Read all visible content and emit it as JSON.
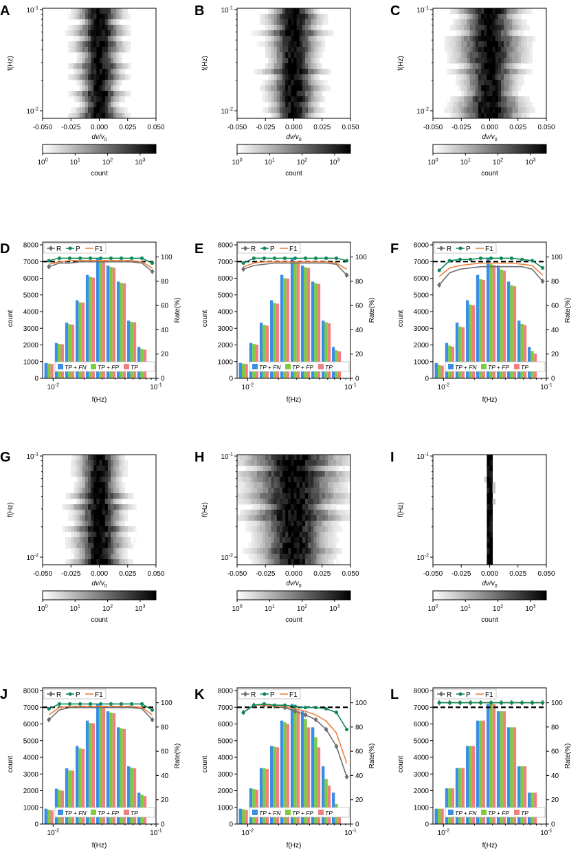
{
  "figure": {
    "heatmap_xlabel": "dv/v",
    "heatmap_xlabel_sub": "0",
    "heatmap_ylabel": "f(Hz)",
    "colorbar_label": "count",
    "hist_xlabel": "f(Hz)",
    "hist_ylabel_left": "count",
    "hist_ylabel_right": "Rate(%)",
    "legend_top": [
      "R",
      "P",
      "F1"
    ],
    "legend_bottom": [
      "TP + FN",
      "TP + FP",
      "TP"
    ],
    "colors": {
      "R": "#6e6e6e",
      "P": "#10885a",
      "F1": "#f0803c",
      "TP_FN": "#3a8ee6",
      "TP_FP": "#7ccc3c",
      "TP": "#f08080",
      "dashed": "#000000"
    }
  },
  "chart_data": [
    {
      "panel": "A",
      "type": "heatmap",
      "spread": 0.01,
      "density": "normal",
      "x_ticks": [
        "-0.050",
        "-0.025",
        "0.000",
        "0.025",
        "0.050"
      ],
      "xlim": [
        -0.05,
        0.05
      ],
      "y_ticks": [
        "10^-1",
        "10^-2"
      ],
      "ylim": [
        0.008,
        0.1
      ],
      "colorbar_ticks": [
        "10^0",
        "10^1",
        "10^2",
        "10^3"
      ]
    },
    {
      "panel": "B",
      "type": "heatmap",
      "spread": 0.012,
      "density": "normal",
      "x_ticks": [
        "-0.050",
        "-0.025",
        "0.000",
        "0.025",
        "0.050"
      ],
      "xlim": [
        -0.05,
        0.05
      ],
      "y_ticks": [
        "10^-1",
        "10^-2"
      ],
      "ylim": [
        0.008,
        0.1
      ],
      "colorbar_ticks": [
        "10^0",
        "10^1",
        "10^2",
        "10^3"
      ]
    },
    {
      "panel": "C",
      "type": "heatmap",
      "spread": 0.014,
      "density": "normal",
      "x_ticks": [
        "-0.050",
        "-0.025",
        "0.000",
        "0.025",
        "0.050"
      ],
      "xlim": [
        -0.05,
        0.05
      ],
      "y_ticks": [
        "10^-1",
        "10^-2"
      ],
      "ylim": [
        0.008,
        0.1
      ],
      "colorbar_ticks": [
        "10^0",
        "10^1",
        "10^2",
        "10^3"
      ]
    },
    {
      "panel": "D",
      "type": "bar",
      "x": [
        0.0091,
        0.0115,
        0.0145,
        0.0183,
        0.023,
        0.029,
        0.0365,
        0.046,
        0.058,
        0.073,
        0.092
      ],
      "series": [
        {
          "name": "TP + FN",
          "values": [
            920,
            2120,
            3340,
            4680,
            6200,
            7200,
            6760,
            5800,
            3460,
            1880,
            0
          ]
        },
        {
          "name": "TP + FP",
          "values": [
            880,
            2060,
            3240,
            4560,
            6080,
            7060,
            6680,
            5720,
            3380,
            1760,
            0
          ]
        },
        {
          "name": "TP",
          "values": [
            860,
            2040,
            3220,
            4540,
            6040,
            7020,
            6640,
            5700,
            3360,
            1720,
            0
          ]
        }
      ],
      "rates": {
        "x": [
          0.0091,
          0.0115,
          0.0145,
          0.0183,
          0.023,
          0.029,
          0.0365,
          0.046,
          0.058,
          0.073,
          0.092
        ],
        "R": [
          92,
          95,
          95,
          96,
          96,
          96,
          96,
          96,
          96,
          95,
          88
        ],
        "P": [
          97,
          99,
          99,
          99,
          99,
          99,
          99,
          99,
          99,
          99,
          95
        ],
        "F1": [
          94,
          96,
          97,
          97,
          97,
          97,
          97,
          97,
          97,
          96,
          91
        ]
      },
      "dashed_count": 7000,
      "ylim_left": [
        0,
        8000
      ],
      "ylim_right": [
        0,
        110
      ],
      "y_ticks_left": [
        "0",
        "1000",
        "2000",
        "3000",
        "4000",
        "5000",
        "6000",
        "7000",
        "8000"
      ],
      "y_ticks_right": [
        "0",
        "20",
        "40",
        "60",
        "80",
        "100"
      ],
      "x_ticks": [
        "10^-2",
        "10^-1"
      ]
    },
    {
      "panel": "E",
      "type": "bar",
      "x": [
        0.0091,
        0.0115,
        0.0145,
        0.0183,
        0.023,
        0.029,
        0.0365,
        0.046,
        0.058,
        0.073,
        0.092
      ],
      "series": [
        {
          "name": "TP + FN",
          "values": [
            920,
            2120,
            3340,
            4680,
            6200,
            7200,
            6760,
            5800,
            3460,
            1880,
            0
          ]
        },
        {
          "name": "TP + FP",
          "values": [
            880,
            2060,
            3200,
            4520,
            6000,
            7020,
            6660,
            5700,
            3360,
            1680,
            0
          ]
        },
        {
          "name": "TP",
          "values": [
            860,
            2020,
            3160,
            4480,
            5980,
            6980,
            6620,
            5660,
            3300,
            1620,
            0
          ]
        }
      ],
      "rates": {
        "x": [
          0.0091,
          0.0115,
          0.0145,
          0.0183,
          0.023,
          0.029,
          0.0365,
          0.046,
          0.058,
          0.073,
          0.092
        ],
        "R": [
          90,
          93,
          94,
          95,
          95,
          95,
          95,
          95,
          95,
          94,
          85
        ],
        "P": [
          95,
          99,
          99,
          99,
          99,
          99,
          99,
          99,
          99,
          99,
          97
        ],
        "F1": [
          92,
          95,
          96,
          96,
          96,
          96,
          96,
          96,
          96,
          95,
          90
        ]
      },
      "dashed_count": 7000,
      "ylim_left": [
        0,
        8000
      ],
      "ylim_right": [
        0,
        110
      ],
      "y_ticks_left": [
        "0",
        "1000",
        "2000",
        "3000",
        "4000",
        "5000",
        "6000",
        "7000",
        "8000"
      ],
      "y_ticks_right": [
        "0",
        "20",
        "40",
        "60",
        "80",
        "100"
      ],
      "x_ticks": [
        "10^-2",
        "10^-1"
      ]
    },
    {
      "panel": "F",
      "type": "bar",
      "x": [
        0.0091,
        0.0115,
        0.0145,
        0.0183,
        0.023,
        0.029,
        0.0365,
        0.046,
        0.058,
        0.073,
        0.092
      ],
      "series": [
        {
          "name": "TP + FN",
          "values": [
            920,
            2120,
            3340,
            4680,
            6200,
            7200,
            6760,
            5800,
            3460,
            1880,
            0
          ]
        },
        {
          "name": "TP + FP",
          "values": [
            800,
            1960,
            3100,
            4420,
            5940,
            6860,
            6520,
            5580,
            3260,
            1640,
            0
          ]
        },
        {
          "name": "TP",
          "values": [
            760,
            1900,
            3060,
            4380,
            5900,
            6800,
            6460,
            5520,
            3200,
            1480,
            0
          ]
        }
      ],
      "rates": {
        "x": [
          0.0091,
          0.0115,
          0.0145,
          0.0183,
          0.023,
          0.029,
          0.0365,
          0.046,
          0.058,
          0.073,
          0.092
        ],
        "R": [
          77,
          87,
          90,
          91,
          92,
          92,
          92,
          92,
          92,
          90,
          80
        ],
        "P": [
          89,
          97,
          98,
          98,
          99,
          99,
          99,
          99,
          98,
          97,
          91
        ],
        "F1": [
          84,
          91,
          93,
          94,
          95,
          95,
          95,
          95,
          94,
          93,
          85
        ]
      },
      "dashed_count": 7000,
      "ylim_left": [
        0,
        8000
      ],
      "ylim_right": [
        0,
        110
      ],
      "y_ticks_left": [
        "0",
        "1000",
        "2000",
        "3000",
        "4000",
        "5000",
        "6000",
        "7000",
        "8000"
      ],
      "y_ticks_right": [
        "0",
        "20",
        "40",
        "60",
        "80",
        "100"
      ],
      "x_ticks": [
        "10^-2",
        "10^-1"
      ]
    },
    {
      "panel": "G",
      "type": "heatmap",
      "spread": 0.011,
      "density": "normal",
      "x_ticks": [
        "-0.050",
        "-0.025",
        "0.000",
        "0.025",
        "0.050"
      ],
      "xlim": [
        -0.05,
        0.05
      ],
      "y_ticks": [
        "10^-1",
        "10^-2"
      ],
      "ylim": [
        0.008,
        0.1
      ],
      "colorbar_ticks": [
        "10^0",
        "10^1",
        "10^2",
        "10^3"
      ]
    },
    {
      "panel": "H",
      "type": "heatmap",
      "spread": 0.02,
      "density": "wide",
      "x_ticks": [
        "-0.050",
        "-0.025",
        "0.000",
        "0.025",
        "0.050"
      ],
      "xlim": [
        -0.05,
        0.05
      ],
      "y_ticks": [
        "10^-1",
        "10^-2"
      ],
      "ylim": [
        0.008,
        0.1
      ],
      "colorbar_ticks": [
        "10^0",
        "10^1",
        "10^2",
        "10^3"
      ]
    },
    {
      "panel": "I",
      "type": "heatmap",
      "spread": 0.002,
      "density": "narrow",
      "x_ticks": [
        "-0.050",
        "-0.025",
        "0.000",
        "0.025",
        "0.050"
      ],
      "xlim": [
        -0.05,
        0.05
      ],
      "y_ticks": [
        "10^-1",
        "10^-2"
      ],
      "ylim": [
        0.008,
        0.1
      ],
      "colorbar_ticks": [
        "10^0",
        "10^1",
        "10^2",
        "10^3"
      ]
    },
    {
      "panel": "J",
      "type": "bar",
      "x": [
        0.0091,
        0.0115,
        0.0145,
        0.0183,
        0.023,
        0.029,
        0.0365,
        0.046,
        0.058,
        0.073,
        0.092
      ],
      "series": [
        {
          "name": "TP + FN",
          "values": [
            920,
            2120,
            3340,
            4680,
            6200,
            7200,
            6760,
            5800,
            3460,
            1880,
            0
          ]
        },
        {
          "name": "TP + FP",
          "values": [
            860,
            2040,
            3220,
            4540,
            6060,
            7040,
            6680,
            5740,
            3380,
            1760,
            0
          ]
        },
        {
          "name": "TP",
          "values": [
            820,
            2000,
            3200,
            4500,
            6040,
            7000,
            6640,
            5700,
            3340,
            1680,
            0
          ]
        }
      ],
      "rates": {
        "x": [
          0.0091,
          0.0115,
          0.0145,
          0.0183,
          0.023,
          0.029,
          0.0365,
          0.046,
          0.058,
          0.073,
          0.092
        ],
        "R": [
          86,
          94,
          96,
          96,
          96,
          96,
          96,
          96,
          96,
          95,
          86
        ],
        "P": [
          95,
          99,
          99,
          99,
          99,
          99,
          99,
          99,
          99,
          99,
          94
        ],
        "F1": [
          90,
          96,
          97,
          97,
          97,
          97,
          97,
          97,
          97,
          96,
          90
        ]
      },
      "dashed_count": 7000,
      "ylim_left": [
        0,
        8000
      ],
      "ylim_right": [
        0,
        110
      ],
      "y_ticks_left": [
        "0",
        "1000",
        "2000",
        "3000",
        "4000",
        "5000",
        "6000",
        "7000",
        "8000"
      ],
      "y_ticks_right": [
        "0",
        "20",
        "40",
        "60",
        "80",
        "100"
      ],
      "x_ticks": [
        "10^-2",
        "10^-1"
      ]
    },
    {
      "panel": "K",
      "type": "bar",
      "x": [
        0.0091,
        0.0115,
        0.0145,
        0.0183,
        0.023,
        0.029,
        0.0365,
        0.046,
        0.058,
        0.073,
        0.092
      ],
      "series": [
        {
          "name": "TP + FN",
          "values": [
            920,
            2140,
            3360,
            4680,
            6200,
            7200,
            6760,
            5800,
            3460,
            1880,
            0
          ]
        },
        {
          "name": "TP + FP",
          "values": [
            880,
            2100,
            3340,
            4640,
            6100,
            7000,
            6300,
            5200,
            2700,
            1200,
            0
          ]
        },
        {
          "name": "TP",
          "values": [
            840,
            2060,
            3300,
            4600,
            6000,
            6800,
            5800,
            4600,
            2300,
            700,
            0
          ]
        }
      ],
      "rates": {
        "x": [
          0.0091,
          0.0115,
          0.0145,
          0.0183,
          0.023,
          0.029,
          0.0365,
          0.046,
          0.058,
          0.073,
          0.092
        ],
        "R": [
          92,
          98,
          98,
          97,
          96,
          93,
          90,
          86,
          78,
          64,
          39
        ],
        "P": [
          92,
          98,
          99,
          98,
          98,
          97,
          96,
          96,
          95,
          92,
          78
        ],
        "F1": [
          92,
          98,
          98,
          97,
          97,
          95,
          93,
          90,
          85,
          75,
          50
        ]
      },
      "dashed_count": 7000,
      "ylim_left": [
        0,
        8000
      ],
      "ylim_right": [
        0,
        110
      ],
      "y_ticks_left": [
        "0",
        "1000",
        "2000",
        "3000",
        "4000",
        "5000",
        "6000",
        "7000",
        "8000"
      ],
      "y_ticks_right": [
        "0",
        "20",
        "40",
        "60",
        "80",
        "100"
      ],
      "x_ticks": [
        "10^-2",
        "10^-1"
      ]
    },
    {
      "panel": "L",
      "type": "bar",
      "x": [
        0.0091,
        0.0115,
        0.0145,
        0.0183,
        0.023,
        0.029,
        0.0365,
        0.046,
        0.058,
        0.073,
        0.092
      ],
      "series": [
        {
          "name": "TP + FN",
          "values": [
            920,
            2140,
            3360,
            4680,
            6200,
            7200,
            6760,
            5800,
            3460,
            1880,
            0
          ]
        },
        {
          "name": "TP + FP",
          "values": [
            920,
            2140,
            3360,
            4680,
            6200,
            7200,
            6760,
            5800,
            3460,
            1880,
            0
          ]
        },
        {
          "name": "TP",
          "values": [
            920,
            2140,
            3360,
            4680,
            6200,
            7200,
            6760,
            5800,
            3460,
            1880,
            0
          ]
        }
      ],
      "rates": {
        "x": [
          0.0091,
          0.0115,
          0.0145,
          0.0183,
          0.023,
          0.029,
          0.0365,
          0.046,
          0.058,
          0.073,
          0.092
        ],
        "R": [
          100,
          100,
          100,
          100,
          100,
          100,
          100,
          100,
          100,
          100,
          100
        ],
        "P": [
          100,
          100,
          100,
          100,
          100,
          100,
          100,
          100,
          100,
          100,
          100
        ],
        "F1": [
          100,
          100,
          100,
          100,
          100,
          100,
          100,
          100,
          100,
          100,
          100
        ]
      },
      "dashed_count": 7000,
      "ylim_left": [
        0,
        8000
      ],
      "ylim_right": [
        0,
        110
      ],
      "y_ticks_left": [
        "0",
        "1000",
        "2000",
        "3000",
        "4000",
        "5000",
        "6000",
        "7000",
        "8000"
      ],
      "y_ticks_right": [
        "0",
        "20",
        "40",
        "60",
        "80",
        "100"
      ],
      "x_ticks": [
        "10^-2",
        "10^-1"
      ]
    }
  ]
}
